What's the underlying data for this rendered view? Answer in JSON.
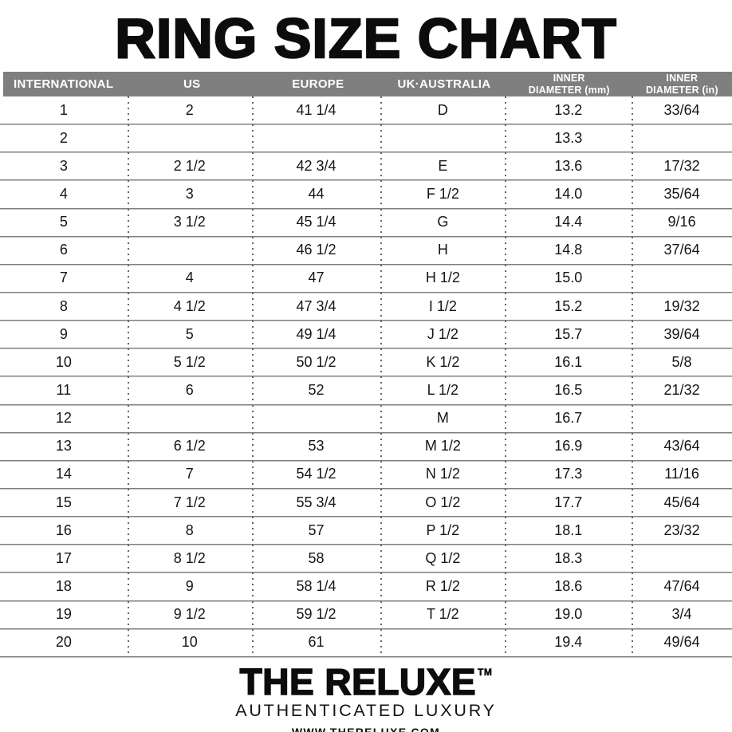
{
  "title": "RING SIZE CHART",
  "chart_data": {
    "type": "table",
    "title": "RING SIZE CHART",
    "columns": [
      "INTERNATIONAL",
      "US",
      "EUROPE",
      "UK·AUSTRALIA",
      "INNER DIAMETER (mm)",
      "INNER DIAMETER (in)"
    ],
    "rows": [
      [
        "1",
        "2",
        "41 1/4",
        "D",
        "13.2",
        "33/64"
      ],
      [
        "2",
        "",
        "",
        "",
        "13.3",
        ""
      ],
      [
        "3",
        "2 1/2",
        "42 3/4",
        "E",
        "13.6",
        "17/32"
      ],
      [
        "4",
        "3",
        "44",
        "F 1/2",
        "14.0",
        "35/64"
      ],
      [
        "5",
        "3 1/2",
        "45 1/4",
        "G",
        "14.4",
        "9/16"
      ],
      [
        "6",
        "",
        "46 1/2",
        "H",
        "14.8",
        "37/64"
      ],
      [
        "7",
        "4",
        "47",
        "H 1/2",
        "15.0",
        ""
      ],
      [
        "8",
        "4 1/2",
        "47 3/4",
        "I 1/2",
        "15.2",
        "19/32"
      ],
      [
        "9",
        "5",
        "49 1/4",
        "J 1/2",
        "15.7",
        "39/64"
      ],
      [
        "10",
        "5 1/2",
        "50 1/2",
        "K 1/2",
        "16.1",
        "5/8"
      ],
      [
        "11",
        "6",
        "52",
        "L 1/2",
        "16.5",
        "21/32"
      ],
      [
        "12",
        "",
        "",
        "M",
        "16.7",
        ""
      ],
      [
        "13",
        "6 1/2",
        "53",
        "M 1/2",
        "16.9",
        "43/64"
      ],
      [
        "14",
        "7",
        "54 1/2",
        "N 1/2",
        "17.3",
        "11/16"
      ],
      [
        "15",
        "7 1/2",
        "55 3/4",
        "O 1/2",
        "17.7",
        "45/64"
      ],
      [
        "16",
        "8",
        "57",
        "P 1/2",
        "18.1",
        "23/32"
      ],
      [
        "17",
        "8 1/2",
        "58",
        "Q 1/2",
        "18.3",
        ""
      ],
      [
        "18",
        "9",
        "58 1/4",
        "R 1/2",
        "18.6",
        "47/64"
      ],
      [
        "19",
        "9 1/2",
        "59 1/2",
        "T 1/2",
        "19.0",
        "3/4"
      ],
      [
        "20",
        "10",
        "61",
        "",
        "19.4",
        "49/64"
      ]
    ]
  },
  "table": {
    "headers": [
      {
        "text": "INTERNATIONAL"
      },
      {
        "text": "US"
      },
      {
        "text": "EUROPE"
      },
      {
        "text": "UK·AUSTRALIA"
      },
      {
        "text": "INNER DIAMETER (mm)",
        "line1": "INNER",
        "line2": "DIAMETER (mm)"
      },
      {
        "text": "INNER DIAMETER (in)",
        "line1": "INNER",
        "line2": "DIAMETER (in)"
      }
    ],
    "column_keys": [
      "international",
      "us",
      "europe",
      "uk-australia",
      "inner-diameter-mm",
      "inner-diameter-in"
    ]
  },
  "footer": {
    "brand": "THE RELUXE",
    "trademark": "TM",
    "tagline": "AUTHENTICATED LUXURY",
    "website": "WWW.THERELUXE.COM"
  },
  "colors": {
    "header_bg": "#7f7f7f",
    "header_text": "#ffffff",
    "title_text": "#0c0c0c",
    "body_text": "#151515",
    "line_dark": "#7d7d7d",
    "line_light": "#c0c0c0",
    "dot_line": "#666666"
  }
}
